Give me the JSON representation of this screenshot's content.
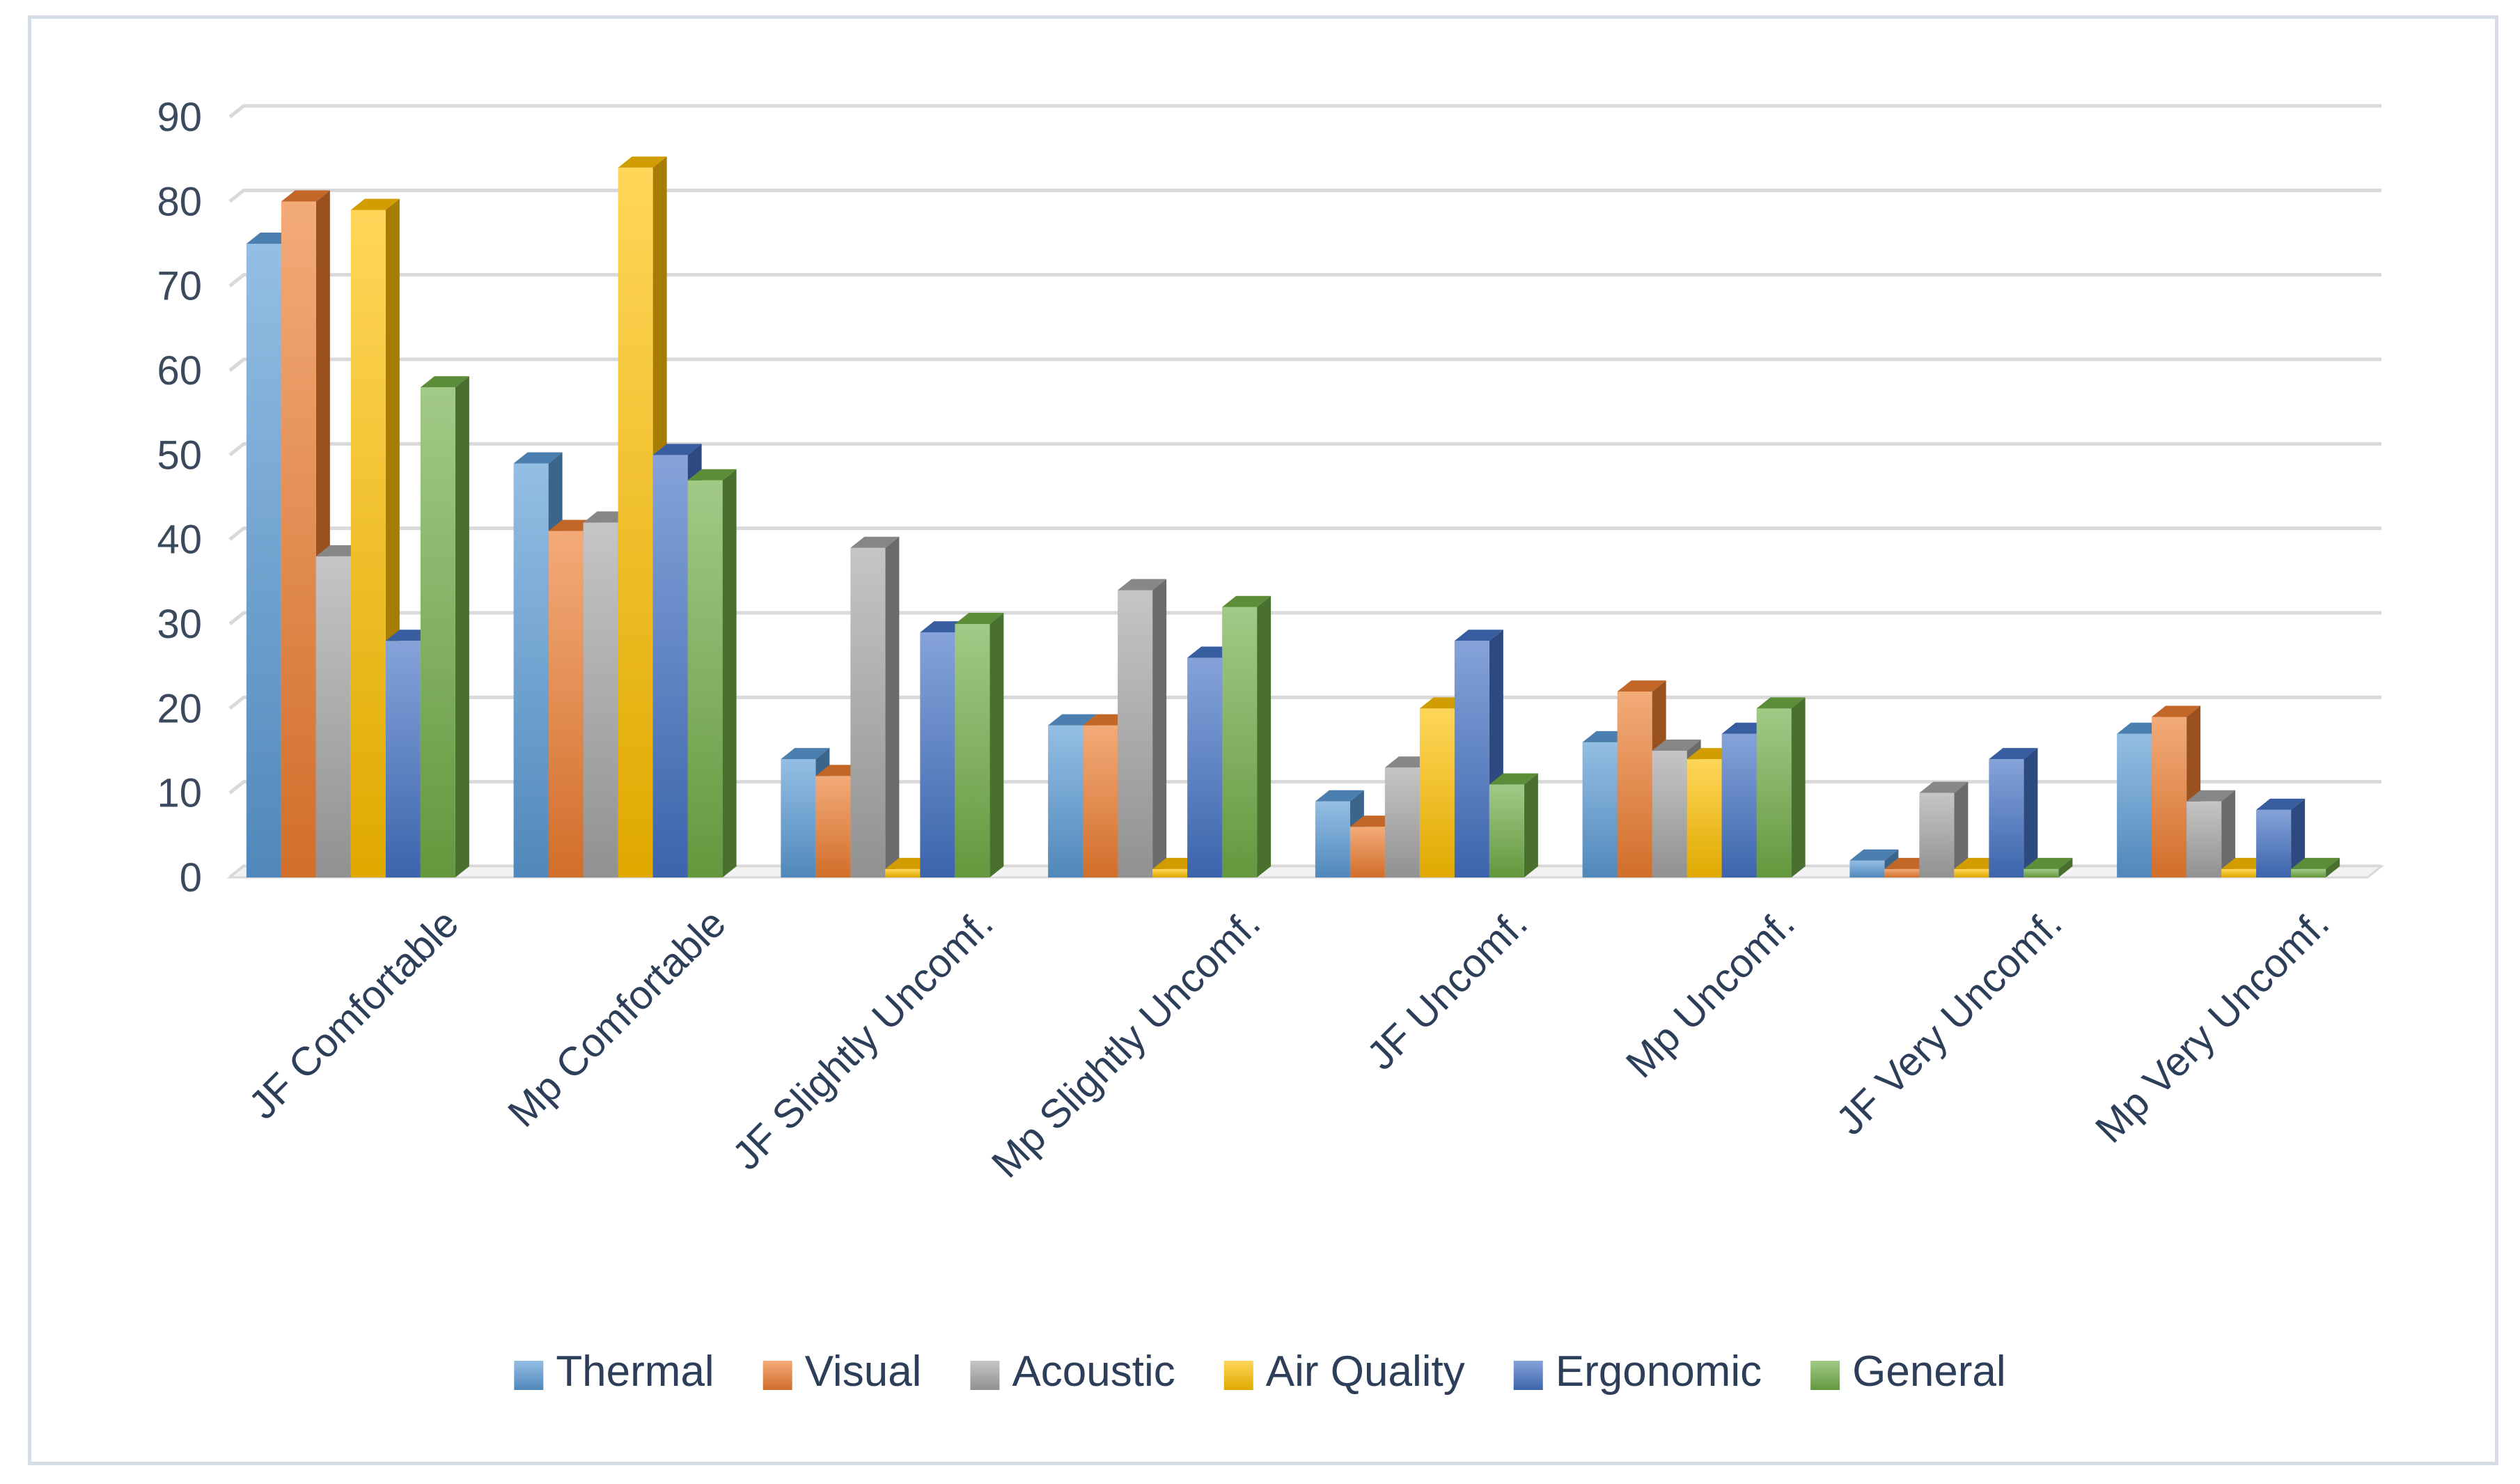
{
  "chart_data": {
    "type": "bar",
    "style": "3d-clustered-column",
    "title": "",
    "xlabel": "",
    "ylabel": "",
    "ylim": [
      0,
      90
    ],
    "y_ticks": [
      "0",
      "10",
      "20",
      "30",
      "40",
      "50",
      "60",
      "70",
      "80",
      "90"
    ],
    "grid": true,
    "legend_position": "bottom",
    "categories": [
      "JF Comfortable",
      "Mp Comfortable",
      "JF Slightly Uncomf.",
      "Mp Slightly Uncomf.",
      "JF Uncomf.",
      "Mp Uncomf.",
      "JF Very Uncomf.",
      "Mp Very Uncomf."
    ],
    "series": [
      {
        "name": "Thermal",
        "color": "#5b9bd5",
        "values": [
          75,
          49,
          14,
          18,
          9,
          16,
          2,
          17
        ]
      },
      {
        "name": "Visual",
        "color": "#ed7d31",
        "values": [
          80,
          41,
          12,
          18,
          6,
          22,
          1,
          19
        ]
      },
      {
        "name": "Acoustic",
        "color": "#a5a5a5",
        "values": [
          38,
          42,
          39,
          34,
          13,
          15,
          10,
          9
        ]
      },
      {
        "name": "Air Quality",
        "color": "#ffc000",
        "values": [
          79,
          84,
          1,
          1,
          20,
          14,
          1,
          1
        ]
      },
      {
        "name": "Ergonomic",
        "color": "#4472c4",
        "values": [
          28,
          50,
          29,
          26,
          28,
          17,
          14,
          8
        ]
      },
      {
        "name": "General",
        "color": "#70ad47",
        "values": [
          58,
          47,
          30,
          32,
          11,
          20,
          1,
          1
        ]
      }
    ]
  }
}
